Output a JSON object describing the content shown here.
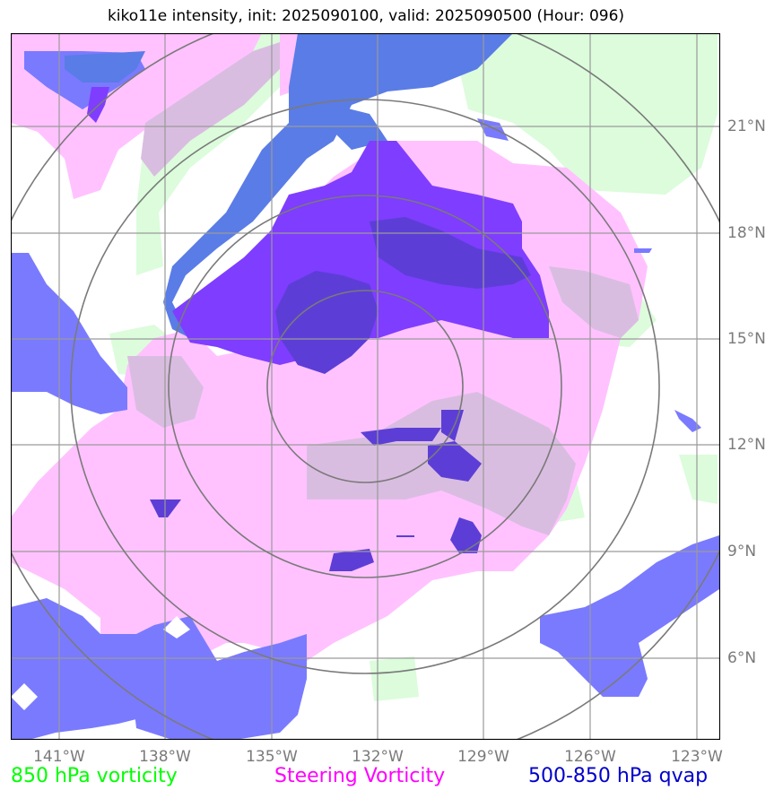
{
  "title": "kiko11e intensity, init: 2025090100, valid: 2025090500 (Hour: 096)",
  "axes": {
    "lat_labels": [
      "21°N",
      "18°N",
      "15°N",
      "12°N",
      "9°N",
      "6°N"
    ],
    "lon_labels": [
      "141°W",
      "138°W",
      "135°W",
      "132°W",
      "129°W",
      "126°W",
      "123°W"
    ]
  },
  "legend": {
    "vorticity_850": "850 hPa vorticity",
    "steering_vorticity": "Steering Vorticity",
    "qvap": "500-850 hPa qvap"
  },
  "colors": {
    "vorticity_850": "#00ff00",
    "steering_vorticity": "#ff00ff",
    "qvap": "#0000cc",
    "vorticity_fill": "#dcfcdc",
    "steering_fill": "#ffc2ff",
    "qvap_fill": "#7a7aff",
    "overlap_fill": "#7f3dff",
    "grid": "#9a9a9a",
    "range_rings": "#7a7a7a"
  }
}
